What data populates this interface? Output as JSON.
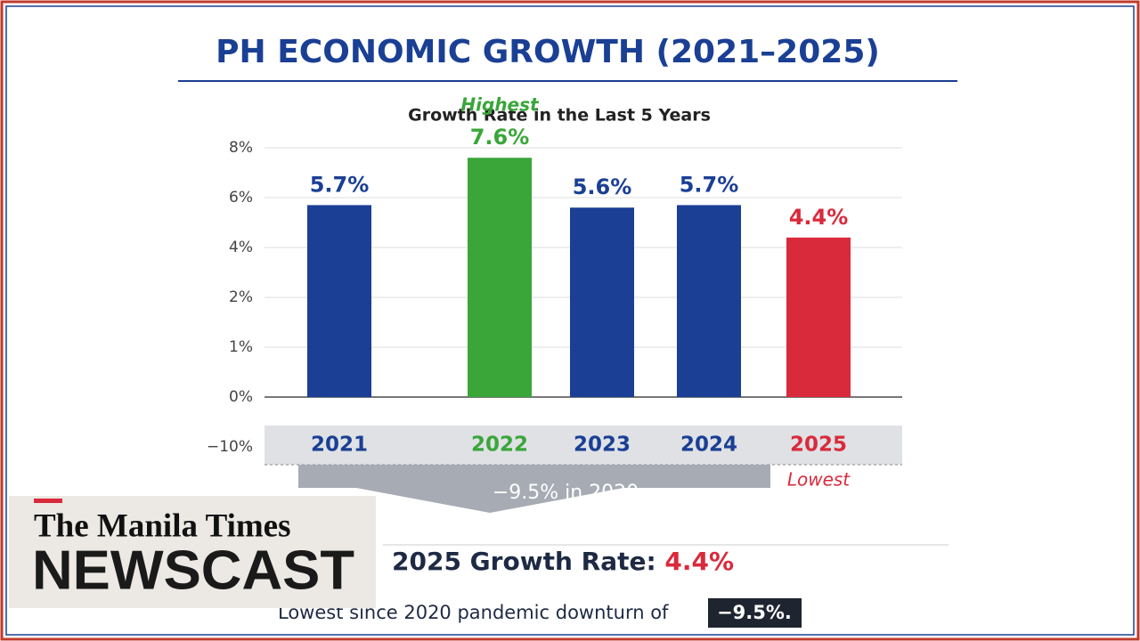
{
  "chart_data": {
    "type": "bar",
    "title": "PH ECONOMIC GROWTH (2021–2025)",
    "subtitle": "Growth Rate in the Last 5 Years",
    "categories": [
      "2021",
      "2022",
      "2023",
      "2024",
      "2025"
    ],
    "values": [
      5.7,
      7.6,
      5.6,
      5.7,
      4.4
    ],
    "value_labels": [
      "5.7%",
      "7.6%",
      "5.6%",
      "5.7%",
      "4.4%"
    ],
    "colors": [
      "#1a3f94",
      "#3aa63a",
      "#1a3f94",
      "#1a3f94",
      "#d92a3c"
    ],
    "yticks": [
      {
        "value": 8,
        "label": "8%"
      },
      {
        "value": 6,
        "label": "6%"
      },
      {
        "value": 4,
        "label": "4%"
      },
      {
        "value": 2,
        "label": "2%"
      },
      {
        "value": 1,
        "label": "1%"
      },
      {
        "value": 0,
        "label": "0%"
      },
      {
        "value": -10,
        "label": "−10%"
      }
    ],
    "grid": true,
    "annotations": {
      "highest": "Highest",
      "lowest": "Lowest",
      "drop": "−9.5% in 2020"
    }
  },
  "logo": {
    "masthead": "The Manila Times",
    "program": "NEWSCAST"
  },
  "footer": {
    "headline": "2025 Growth Rate: ",
    "headline_value": "4.4%",
    "note": "Lowest since 2020 pandemic downturn of",
    "note_value": "−9.5%."
  }
}
